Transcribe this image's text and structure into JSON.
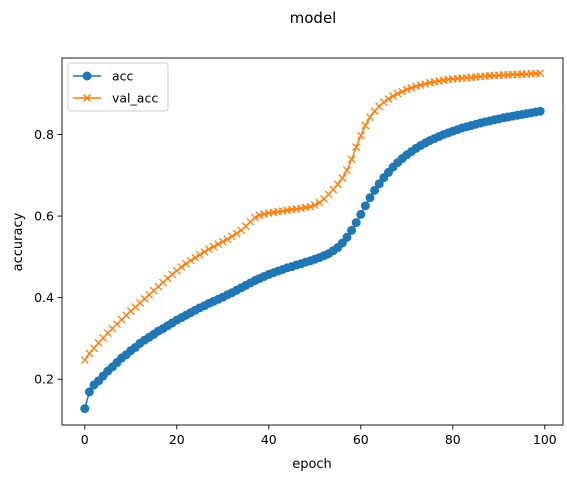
{
  "figure": {
    "title": "model"
  },
  "chart_data": {
    "type": "line",
    "title": "model",
    "xlabel": "epoch",
    "ylabel": "accuracy",
    "xlim": [
      -4.95,
      103.95
    ],
    "ylim": [
      0.0878,
      0.9875
    ],
    "xticks": [
      0,
      20,
      40,
      60,
      80,
      100
    ],
    "yticks": [
      0.2,
      0.4,
      0.6,
      0.8
    ],
    "grid": false,
    "legend_position": "upper-left",
    "series": [
      {
        "name": "acc",
        "color": "#1f77b4",
        "marker": "circle",
        "x": [
          0,
          1,
          2,
          3,
          4,
          5,
          6,
          7,
          8,
          9,
          10,
          11,
          12,
          13,
          14,
          15,
          16,
          17,
          18,
          19,
          20,
          21,
          22,
          23,
          24,
          25,
          26,
          27,
          28,
          29,
          30,
          31,
          32,
          33,
          34,
          35,
          36,
          37,
          38,
          39,
          40,
          41,
          42,
          43,
          44,
          45,
          46,
          47,
          48,
          49,
          50,
          51,
          52,
          53,
          54,
          55,
          56,
          57,
          58,
          59,
          60,
          61,
          62,
          63,
          64,
          65,
          66,
          67,
          68,
          69,
          70,
          71,
          72,
          73,
          74,
          75,
          76,
          77,
          78,
          79,
          80,
          81,
          82,
          83,
          84,
          85,
          86,
          87,
          88,
          89,
          90,
          91,
          92,
          93,
          94,
          95,
          96,
          97,
          98,
          99
        ],
        "values": [
          0.128,
          0.169,
          0.186,
          0.196,
          0.208,
          0.22,
          0.23,
          0.241,
          0.252,
          0.26,
          0.27,
          0.278,
          0.288,
          0.296,
          0.303,
          0.31,
          0.318,
          0.324,
          0.331,
          0.338,
          0.345,
          0.351,
          0.357,
          0.363,
          0.369,
          0.375,
          0.38,
          0.386,
          0.391,
          0.396,
          0.401,
          0.407,
          0.412,
          0.418,
          0.424,
          0.43,
          0.436,
          0.442,
          0.447,
          0.452,
          0.457,
          0.461,
          0.465,
          0.469,
          0.473,
          0.476,
          0.48,
          0.483,
          0.487,
          0.49,
          0.494,
          0.498,
          0.503,
          0.508,
          0.515,
          0.523,
          0.534,
          0.548,
          0.565,
          0.584,
          0.604,
          0.625,
          0.645,
          0.663,
          0.679,
          0.694,
          0.707,
          0.72,
          0.731,
          0.741,
          0.75,
          0.758,
          0.766,
          0.773,
          0.779,
          0.785,
          0.79,
          0.795,
          0.8,
          0.804,
          0.808,
          0.812,
          0.816,
          0.819,
          0.822,
          0.825,
          0.828,
          0.831,
          0.833,
          0.836,
          0.838,
          0.841,
          0.843,
          0.845,
          0.847,
          0.849,
          0.851,
          0.853,
          0.855,
          0.857
        ]
      },
      {
        "name": "val_acc",
        "color": "#ff7f0e",
        "marker": "x",
        "x": [
          0,
          1,
          2,
          3,
          4,
          5,
          6,
          7,
          8,
          9,
          10,
          11,
          12,
          13,
          14,
          15,
          16,
          17,
          18,
          19,
          20,
          21,
          22,
          23,
          24,
          25,
          26,
          27,
          28,
          29,
          30,
          31,
          32,
          33,
          34,
          35,
          36,
          37,
          38,
          39,
          40,
          41,
          42,
          43,
          44,
          45,
          46,
          47,
          48,
          49,
          50,
          51,
          52,
          53,
          54,
          55,
          56,
          57,
          58,
          59,
          60,
          61,
          62,
          63,
          64,
          65,
          66,
          67,
          68,
          69,
          70,
          71,
          72,
          73,
          74,
          75,
          76,
          77,
          78,
          79,
          80,
          81,
          82,
          83,
          84,
          85,
          86,
          87,
          88,
          89,
          90,
          91,
          92,
          93,
          94,
          95,
          96,
          97,
          98,
          99
        ],
        "values": [
          0.247,
          0.263,
          0.276,
          0.289,
          0.301,
          0.313,
          0.324,
          0.335,
          0.346,
          0.357,
          0.367,
          0.377,
          0.387,
          0.397,
          0.407,
          0.417,
          0.427,
          0.437,
          0.447,
          0.457,
          0.466,
          0.475,
          0.483,
          0.491,
          0.498,
          0.505,
          0.512,
          0.519,
          0.525,
          0.531,
          0.537,
          0.543,
          0.55,
          0.557,
          0.565,
          0.575,
          0.586,
          0.596,
          0.602,
          0.605,
          0.607,
          0.609,
          0.611,
          0.612,
          0.614,
          0.616,
          0.617,
          0.619,
          0.621,
          0.623,
          0.627,
          0.633,
          0.642,
          0.653,
          0.665,
          0.678,
          0.693,
          0.712,
          0.739,
          0.769,
          0.797,
          0.822,
          0.842,
          0.857,
          0.869,
          0.879,
          0.887,
          0.894,
          0.9,
          0.905,
          0.91,
          0.914,
          0.918,
          0.921,
          0.924,
          0.927,
          0.929,
          0.931,
          0.933,
          0.935,
          0.936,
          0.937,
          0.938,
          0.939,
          0.94,
          0.941,
          0.942,
          0.943,
          0.944,
          0.944,
          0.945,
          0.946,
          0.946,
          0.947,
          0.947,
          0.948,
          0.948,
          0.949,
          0.949,
          0.95
        ]
      }
    ]
  }
}
